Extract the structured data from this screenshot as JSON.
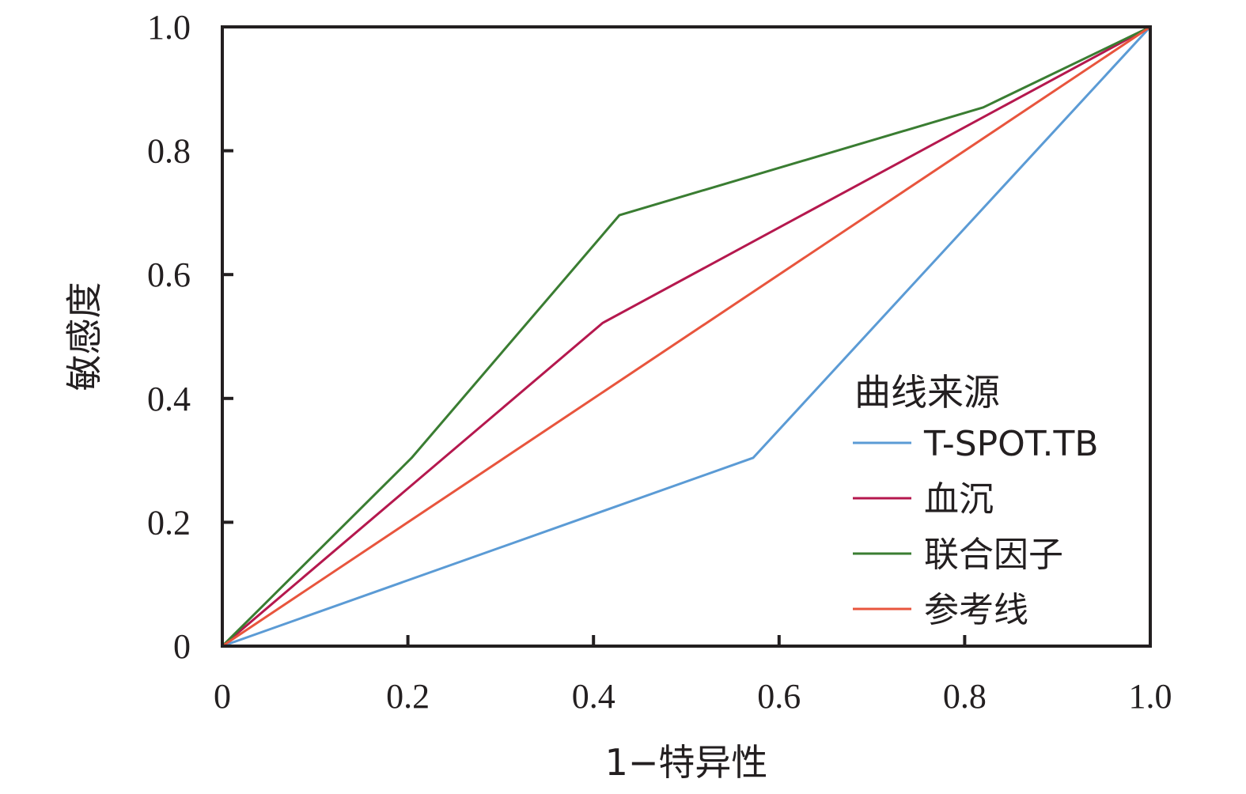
{
  "chart_data": {
    "type": "line",
    "title": "",
    "xlabel": "1−特异性",
    "ylabel": "敏感度",
    "xlim": [
      0,
      1
    ],
    "ylim": [
      0,
      1
    ],
    "x_ticks": [
      "0",
      "0.2",
      "0.4",
      "0.6",
      "0.8",
      "1.0"
    ],
    "x_tick_values": [
      0,
      0.2,
      0.4,
      0.6,
      0.8,
      1.0
    ],
    "y_ticks": [
      "0",
      "0.2",
      "0.4",
      "0.6",
      "0.8",
      "1.0"
    ],
    "y_tick_values": [
      0,
      0.2,
      0.4,
      0.6,
      0.8,
      1.0
    ],
    "grid": false,
    "legend": {
      "title": "曲线来源",
      "position": "bottom-right"
    },
    "series": [
      {
        "name": "T-SPOT.TB",
        "color": "#5b9bd5",
        "points": [
          [
            0,
            0
          ],
          [
            0.572,
            0.304
          ],
          [
            1.0,
            1.0
          ]
        ]
      },
      {
        "name": "血沉",
        "color": "#b5184e",
        "points": [
          [
            0,
            0
          ],
          [
            0.41,
            0.522
          ],
          [
            1.0,
            1.0
          ]
        ]
      },
      {
        "name": "联合因子",
        "color": "#3a7d32",
        "points": [
          [
            0,
            0
          ],
          [
            0.204,
            0.304
          ],
          [
            0.428,
            0.696
          ],
          [
            0.82,
            0.87
          ],
          [
            1.0,
            1.0
          ]
        ]
      },
      {
        "name": "参考线",
        "color": "#e8553d",
        "points": [
          [
            0,
            0
          ],
          [
            1.0,
            1.0
          ]
        ]
      }
    ]
  }
}
